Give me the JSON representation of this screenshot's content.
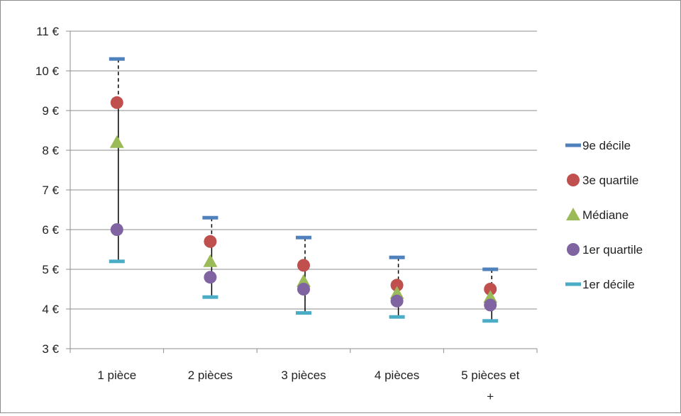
{
  "chart_data": {
    "type": "scatter",
    "title": "",
    "xlabel": "",
    "ylabel": "",
    "categories": [
      "1 pièce",
      "2 pièces",
      "3 pièces",
      "4 pièces",
      "5 pièces et +"
    ],
    "ylim": [
      3,
      11
    ],
    "y_tick_labels": [
      "3 €",
      "4 €",
      "5 €",
      "6 €",
      "7 €",
      "8 €",
      "9 €",
      "10 €",
      "11 €"
    ],
    "grid": "horizontal",
    "legend_position": "right",
    "series": [
      {
        "name": "9e décile",
        "marker": "dash",
        "color": "#4f81bd",
        "values": [
          10.3,
          6.3,
          5.8,
          5.3,
          5.0
        ]
      },
      {
        "name": "3e quartile",
        "marker": "circle",
        "color": "#c0504d",
        "values": [
          9.2,
          5.7,
          5.1,
          4.6,
          4.5
        ]
      },
      {
        "name": "Médiane",
        "marker": "triangle",
        "color": "#9bbb59",
        "values": [
          8.2,
          5.2,
          4.7,
          4.4,
          4.3
        ]
      },
      {
        "name": "1er quartile",
        "marker": "circle",
        "color": "#8064a2",
        "values": [
          6.0,
          4.8,
          4.5,
          4.2,
          4.1
        ]
      },
      {
        "name": "1er décile",
        "marker": "dash",
        "color": "#4bacc6",
        "values": [
          5.2,
          4.3,
          3.9,
          3.8,
          3.7
        ]
      }
    ]
  }
}
